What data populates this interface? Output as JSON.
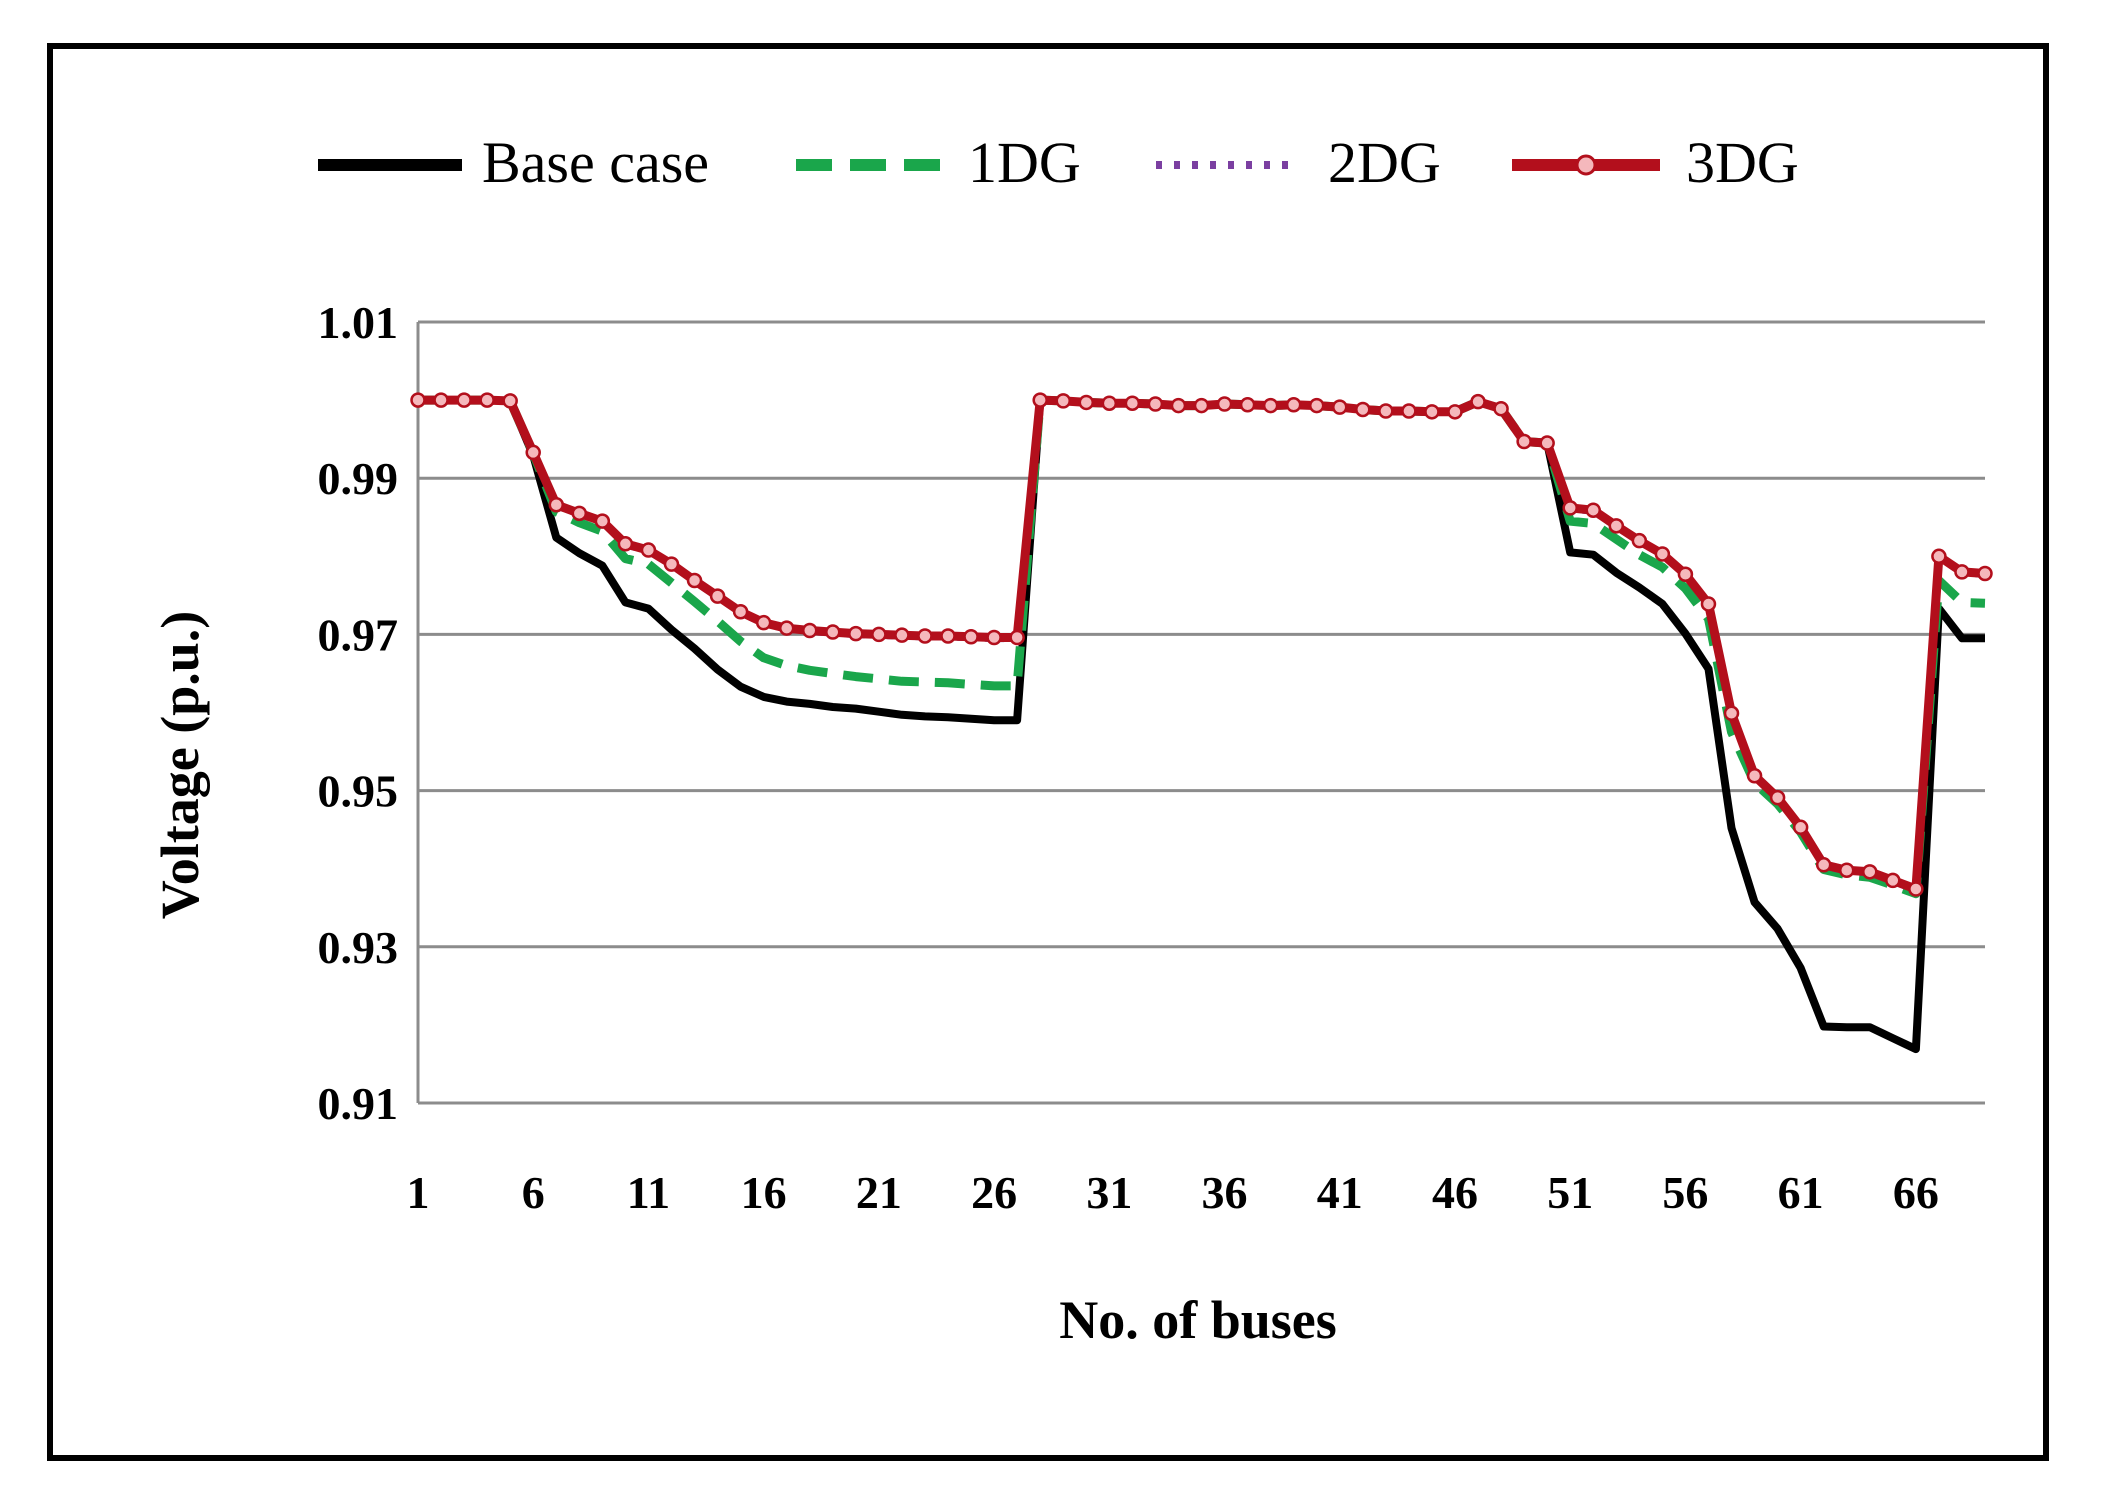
{
  "chart_data": {
    "type": "line",
    "xlabel": "No. of buses",
    "ylabel": "Voltage (p.u.)",
    "ylim": [
      0.91,
      1.01
    ],
    "xlim": [
      1,
      69
    ],
    "yticks": [
      "1.01",
      "0.99",
      "0.97",
      "0.95",
      "0.93",
      "0.91"
    ],
    "ytick_values": [
      1.01,
      0.99,
      0.97,
      0.95,
      0.93,
      0.91
    ],
    "xticks": [
      "1",
      "6",
      "11",
      "16",
      "21",
      "26",
      "31",
      "36",
      "41",
      "46",
      "51",
      "56",
      "61",
      "66"
    ],
    "xtick_values": [
      1,
      6,
      11,
      16,
      21,
      26,
      31,
      36,
      41,
      46,
      51,
      56,
      61,
      66
    ],
    "grid": "horizontal",
    "legend_position": "top",
    "x": [
      1,
      2,
      3,
      4,
      5,
      6,
      7,
      8,
      9,
      10,
      11,
      12,
      13,
      14,
      15,
      16,
      17,
      18,
      19,
      20,
      21,
      22,
      23,
      24,
      25,
      26,
      27,
      28,
      29,
      30,
      31,
      32,
      33,
      34,
      35,
      36,
      37,
      38,
      39,
      40,
      41,
      42,
      43,
      44,
      45,
      46,
      47,
      48,
      49,
      50,
      51,
      52,
      53,
      54,
      55,
      56,
      57,
      58,
      59,
      60,
      61,
      62,
      63,
      64,
      65,
      66,
      67,
      68,
      69
    ],
    "series": [
      {
        "name": "Base case",
        "color": "#000000",
        "style": "solid",
        "values": [
          1.0,
          1.0,
          1.0,
          1.0,
          0.9999,
          0.9929,
          0.9824,
          0.9804,
          0.9788,
          0.9741,
          0.9733,
          0.9706,
          0.9682,
          0.9655,
          0.9633,
          0.962,
          0.9614,
          0.9611,
          0.9607,
          0.9605,
          0.9601,
          0.9597,
          0.9595,
          0.9594,
          0.9592,
          0.959,
          0.959,
          1.0,
          0.9999,
          0.9997,
          0.9996,
          0.9996,
          0.9995,
          0.9993,
          0.9993,
          0.9995,
          0.9994,
          0.9993,
          0.9994,
          0.9993,
          0.9991,
          0.9988,
          0.9986,
          0.9986,
          0.9985,
          0.9985,
          0.9998,
          0.9989,
          0.9947,
          0.9945,
          0.9805,
          0.9802,
          0.9779,
          0.976,
          0.9739,
          0.9701,
          0.9656,
          0.9452,
          0.9357,
          0.9323,
          0.9273,
          0.9198,
          0.9197,
          0.9197,
          0.9183,
          0.9169,
          0.9733,
          0.9695,
          0.9695
        ]
      },
      {
        "name": "1DG",
        "color": "#1aa64b",
        "style": "dashed",
        "values": [
          1.0,
          1.0,
          1.0,
          1.0,
          0.9999,
          0.9932,
          0.9857,
          0.9843,
          0.9832,
          0.9797,
          0.979,
          0.9766,
          0.9742,
          0.9717,
          0.9691,
          0.967,
          0.966,
          0.9654,
          0.965,
          0.9646,
          0.9643,
          0.964,
          0.9639,
          0.9638,
          0.9636,
          0.9634,
          0.9634,
          1.0,
          0.9999,
          0.9997,
          0.9996,
          0.9996,
          0.9995,
          0.9993,
          0.9993,
          0.9995,
          0.9994,
          0.9993,
          0.9994,
          0.9993,
          0.9991,
          0.9988,
          0.9986,
          0.9986,
          0.9985,
          0.9985,
          0.9998,
          0.9989,
          0.9947,
          0.9945,
          0.9845,
          0.9842,
          0.9822,
          0.9802,
          0.9786,
          0.9759,
          0.972,
          0.9575,
          0.951,
          0.9483,
          0.9447,
          0.9399,
          0.9392,
          0.9389,
          0.9379,
          0.9368,
          0.9769,
          0.9741,
          0.974
        ]
      },
      {
        "name": "2DG",
        "color": "#7b3fa1",
        "style": "dotted",
        "values": [
          1.0,
          1.0,
          1.0,
          1.0,
          0.9999,
          0.9932,
          0.9864,
          0.9853,
          0.9843,
          0.9814,
          0.9806,
          0.9788,
          0.9767,
          0.9747,
          0.9727,
          0.9713,
          0.9706,
          0.9703,
          0.9701,
          0.9699,
          0.9698,
          0.9697,
          0.9696,
          0.9696,
          0.9695,
          0.9694,
          0.9694,
          1.0,
          0.9999,
          0.9997,
          0.9996,
          0.9996,
          0.9995,
          0.9993,
          0.9993,
          0.9995,
          0.9994,
          0.9993,
          0.9994,
          0.9993,
          0.9991,
          0.9988,
          0.9986,
          0.9986,
          0.9985,
          0.9985,
          0.9998,
          0.9989,
          0.9947,
          0.9945,
          0.986,
          0.9857,
          0.9837,
          0.9818,
          0.9801,
          0.9775,
          0.9737,
          0.9597,
          0.9517,
          0.9489,
          0.9451,
          0.9403,
          0.9396,
          0.9394,
          0.9383,
          0.9372,
          0.9798,
          0.9778,
          0.9776
        ]
      },
      {
        "name": "3DG",
        "color": "#b30f1c",
        "style": "solid-markers",
        "values": [
          1.0,
          1.0,
          1.0,
          1.0,
          0.9999,
          0.9933,
          0.9866,
          0.9855,
          0.9845,
          0.9816,
          0.9808,
          0.979,
          0.9769,
          0.9749,
          0.9729,
          0.9715,
          0.9708,
          0.9705,
          0.9703,
          0.9701,
          0.97,
          0.9699,
          0.9698,
          0.9698,
          0.9697,
          0.9696,
          0.9696,
          1.0,
          0.9999,
          0.9997,
          0.9996,
          0.9996,
          0.9995,
          0.9993,
          0.9993,
          0.9995,
          0.9994,
          0.9993,
          0.9994,
          0.9993,
          0.9991,
          0.9988,
          0.9986,
          0.9986,
          0.9985,
          0.9985,
          0.9998,
          0.9989,
          0.9947,
          0.9945,
          0.9862,
          0.9859,
          0.9839,
          0.982,
          0.9803,
          0.9777,
          0.9739,
          0.9599,
          0.9519,
          0.9491,
          0.9453,
          0.9405,
          0.9398,
          0.9396,
          0.9385,
          0.9374,
          0.98,
          0.978,
          0.9778
        ]
      }
    ]
  }
}
